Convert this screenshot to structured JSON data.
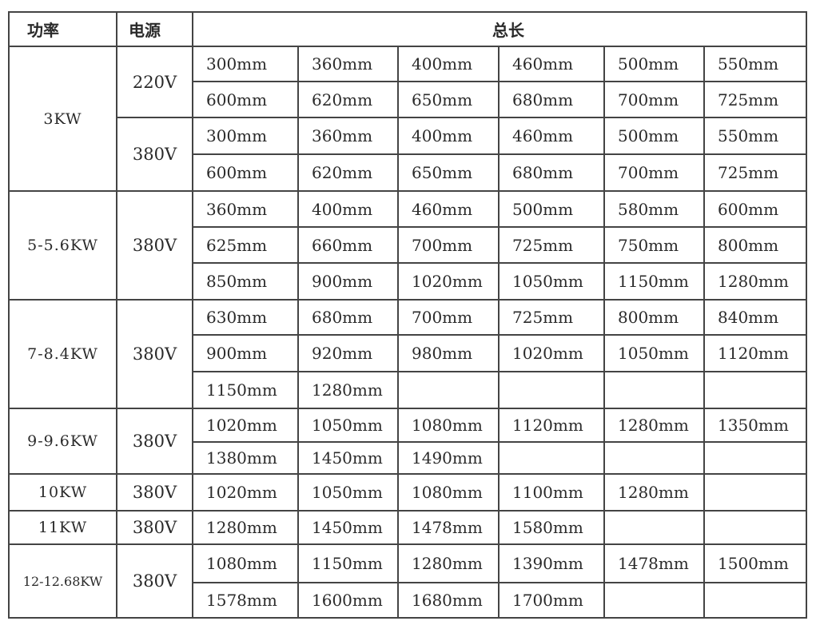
{
  "header": {
    "power": "功率",
    "voltage": "电源",
    "length": "总长"
  },
  "groups": [
    {
      "power": "3KW",
      "supplies": [
        {
          "voltage": "220V",
          "rows": [
            [
              "300mm",
              "360mm",
              "400mm",
              "460mm",
              "500mm",
              "550mm"
            ],
            [
              "600mm",
              "620mm",
              "650mm",
              "680mm",
              "700mm",
              "725mm"
            ]
          ]
        },
        {
          "voltage": "380V",
          "rows": [
            [
              "300mm",
              "360mm",
              "400mm",
              "460mm",
              "500mm",
              "550mm"
            ],
            [
              "600mm",
              "620mm",
              "650mm",
              "680mm",
              "700mm",
              "725mm"
            ]
          ]
        }
      ]
    },
    {
      "power": "5-5.6KW",
      "supplies": [
        {
          "voltage": "380V",
          "rows": [
            [
              "360mm",
              "400mm",
              "460mm",
              "500mm",
              "580mm",
              "600mm"
            ],
            [
              "625mm",
              "660mm",
              "700mm",
              "725mm",
              "750mm",
              "800mm"
            ],
            [
              "850mm",
              "900mm",
              "1020mm",
              "1050mm",
              "1150mm",
              "1280mm"
            ]
          ]
        }
      ]
    },
    {
      "power": "7-8.4KW",
      "supplies": [
        {
          "voltage": "380V",
          "rows": [
            [
              "630mm",
              "680mm",
              "700mm",
              "725mm",
              "800mm",
              "840mm"
            ],
            [
              "900mm",
              "920mm",
              "980mm",
              "1020mm",
              "1050mm",
              "1120mm"
            ],
            [
              "1150mm",
              "1280mm",
              "",
              "",
              "",
              ""
            ]
          ]
        }
      ]
    },
    {
      "power": "9-9.6KW",
      "supplies": [
        {
          "voltage": "380V",
          "rows": [
            [
              "1020mm",
              "1050mm",
              "1080mm",
              "1120mm",
              "1280mm",
              "1350mm"
            ],
            [
              "1380mm",
              "1450mm",
              "1490mm",
              "",
              "",
              ""
            ]
          ]
        }
      ]
    },
    {
      "power": "10KW",
      "supplies": [
        {
          "voltage": "380V",
          "rows": [
            [
              "1020mm",
              "1050mm",
              "1080mm",
              "1100mm",
              "1280mm",
              ""
            ]
          ]
        }
      ]
    },
    {
      "power": "11KW",
      "supplies": [
        {
          "voltage": "380V",
          "rows": [
            [
              "1280mm",
              "1450mm",
              "1478mm",
              "1580mm",
              "",
              ""
            ]
          ]
        }
      ]
    },
    {
      "power": "12-12.68KW",
      "supplies": [
        {
          "voltage": "380V",
          "rows": [
            [
              "1080mm",
              "1150mm",
              "1280mm",
              "1390mm",
              "1478mm",
              "1500mm"
            ],
            [
              "1578mm",
              "1600mm",
              "1680mm",
              "1700mm",
              "",
              ""
            ]
          ]
        }
      ]
    }
  ]
}
